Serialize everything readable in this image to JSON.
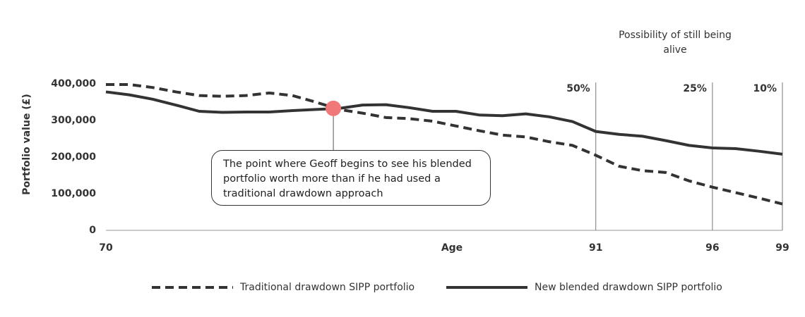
{
  "chart_data": {
    "type": "line",
    "y_label": "Portfolio value (£)",
    "x_label": "Age",
    "x": [
      70,
      71,
      72,
      73,
      74,
      75,
      76,
      77,
      78,
      79,
      80,
      81,
      82,
      83,
      84,
      85,
      86,
      87,
      88,
      89,
      90,
      91,
      92,
      93,
      94,
      95,
      96,
      97,
      98,
      99
    ],
    "xlim": [
      70,
      99
    ],
    "xticks": [
      70,
      91,
      96,
      99
    ],
    "ylim": [
      0,
      400000
    ],
    "yticks": [
      0,
      {
        "value": 100000,
        "label": "100,000"
      },
      {
        "value": 200000,
        "label": "200,000"
      },
      {
        "value": 300000,
        "label": "300,000"
      },
      {
        "value": 400000,
        "label": "400,000"
      }
    ],
    "series": [
      {
        "name": "Traditional drawdown SIPP portfolio",
        "color": "#333333",
        "dashed": true,
        "values": [
          398000,
          398000,
          390000,
          378000,
          368000,
          366000,
          368000,
          375000,
          368000,
          350000,
          330000,
          320000,
          308000,
          305000,
          298000,
          285000,
          272000,
          260000,
          255000,
          242000,
          232000,
          205000,
          175000,
          163000,
          158000,
          135000,
          118000,
          103000,
          88000,
          72000
        ]
      },
      {
        "name": "New blended drawdown SIPP portfolio",
        "color": "#333333",
        "dashed": false,
        "values": [
          378000,
          370000,
          358000,
          342000,
          325000,
          322000,
          323000,
          323000,
          327000,
          330000,
          333000,
          342000,
          343000,
          335000,
          325000,
          325000,
          315000,
          313000,
          318000,
          310000,
          297000,
          270000,
          262000,
          257000,
          245000,
          232000,
          225000,
          223000,
          216000,
          208000
        ]
      }
    ],
    "survival_title": "Possibility of still being alive",
    "survival_markers": [
      {
        "age": 91,
        "label": "50%"
      },
      {
        "age": 96,
        "label": "25%"
      },
      {
        "age": 99,
        "label": "10%"
      }
    ],
    "crossover": {
      "x": 79.75,
      "y": 333000,
      "color": "#f07878",
      "text": "The point where Geoff begins to see his blended portfolio worth more than if he had used a traditional drawdown approach"
    }
  }
}
